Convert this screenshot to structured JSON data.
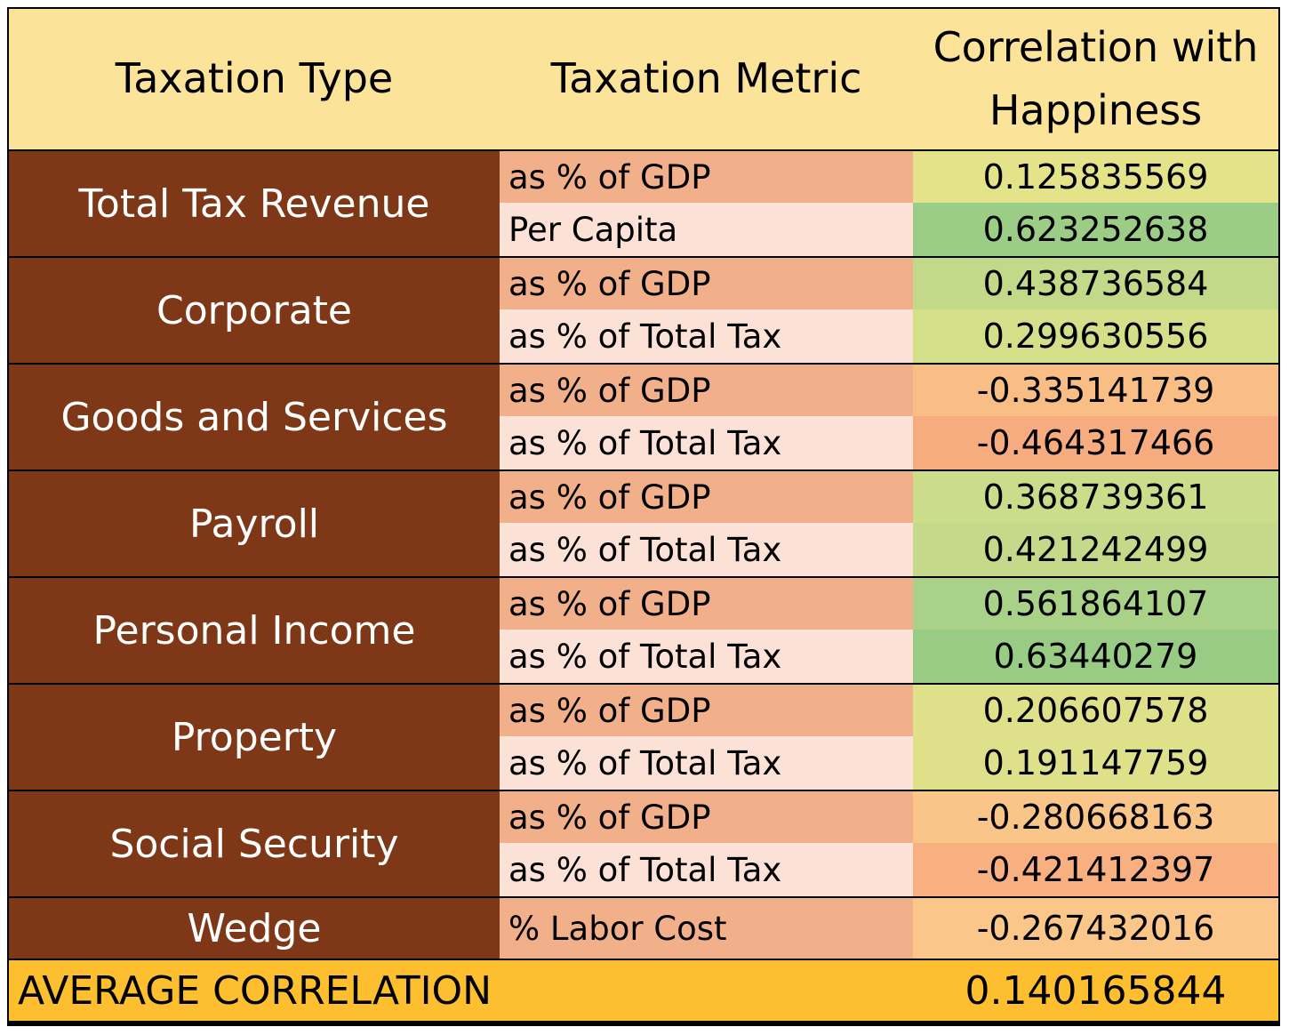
{
  "chart_data": {
    "type": "table",
    "columns": [
      "Taxation Type",
      "Taxation Metric",
      "Correlation with Happiness"
    ],
    "groups": [
      {
        "type": "Total Tax Revenue",
        "rows": [
          {
            "metric": "as % of GDP",
            "value": "0.125835569",
            "color": "#E4E38A"
          },
          {
            "metric": "Per Capita",
            "value": "0.623252638",
            "color": "#9BCD86"
          }
        ]
      },
      {
        "type": "Corporate",
        "rows": [
          {
            "metric": "as % of GDP",
            "value": "0.438736584",
            "color": "#C2D98A"
          },
          {
            "metric": "as % of Total Tax",
            "value": "0.299630556",
            "color": "#D4DF89"
          }
        ]
      },
      {
        "type": "Goods and Services",
        "rows": [
          {
            "metric": "as % of GDP",
            "value": "-0.335141739",
            "color": "#F8BE86"
          },
          {
            "metric": "as % of Total Tax",
            "value": "-0.464317466",
            "color": "#F7AC7F"
          }
        ]
      },
      {
        "type": "Payroll",
        "rows": [
          {
            "metric": "as % of GDP",
            "value": "0.368739361",
            "color": "#CBDC8A"
          },
          {
            "metric": "as % of Total Tax",
            "value": "0.421242499",
            "color": "#C4DA8A"
          }
        ]
      },
      {
        "type": "Personal Income",
        "rows": [
          {
            "metric": "as % of GDP",
            "value": "0.561864107",
            "color": "#A9D187"
          },
          {
            "metric": "as % of Total Tax",
            "value": "0.63440279",
            "color": "#98CC85"
          }
        ]
      },
      {
        "type": "Property",
        "rows": [
          {
            "metric": "as % of GDP",
            "value": "0.206607578",
            "color": "#DEE189"
          },
          {
            "metric": "as % of Total Tax",
            "value": "0.191147759",
            "color": "#DEE18A"
          }
        ]
      },
      {
        "type": "Social Security",
        "rows": [
          {
            "metric": "as % of GDP",
            "value": "-0.280668163",
            "color": "#FAC589"
          },
          {
            "metric": "as % of Total Tax",
            "value": "-0.421412397",
            "color": "#F8B081"
          }
        ]
      },
      {
        "type": "Wedge",
        "rows": [
          {
            "metric": "% Labor Cost",
            "value": "-0.267432016",
            "color": "#FAC68A"
          }
        ]
      }
    ],
    "average": {
      "label": "AVERAGE CORRELATION",
      "value": "0.140165844"
    }
  }
}
